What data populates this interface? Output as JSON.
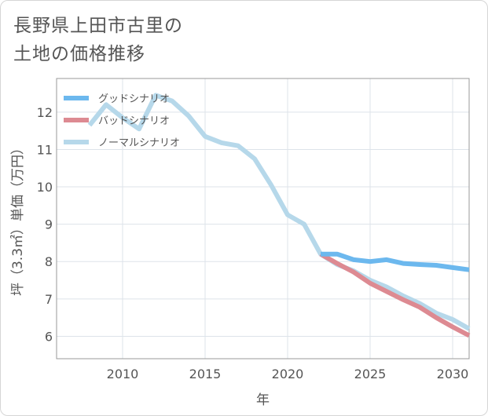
{
  "title": {
    "line1": "長野県上田市古里の",
    "line2": "土地の価格推移"
  },
  "chart_data": {
    "type": "line",
    "xlabel": "年",
    "ylabel": "坪（3.3㎡）単価（万円）",
    "xlim": [
      2006,
      2031
    ],
    "ylim": [
      5.4,
      12.9
    ],
    "xticks": [
      2010,
      2015,
      2020,
      2025,
      2030
    ],
    "yticks": [
      6,
      7,
      8,
      9,
      10,
      11,
      12
    ],
    "grid": true,
    "legend_position": "top-left",
    "series": [
      {
        "name": "グッドシナリオ",
        "color": "#6cb8ee",
        "points": [
          [
            2022,
            8.2
          ],
          [
            2023,
            8.2
          ],
          [
            2024,
            8.05
          ],
          [
            2025,
            8.0
          ],
          [
            2026,
            8.05
          ],
          [
            2027,
            7.95
          ],
          [
            2028,
            7.92
          ],
          [
            2029,
            7.9
          ],
          [
            2030,
            7.84
          ],
          [
            2031,
            7.78
          ]
        ]
      },
      {
        "name": "バッドシナリオ",
        "color": "#dd8a92",
        "points": [
          [
            2022,
            8.2
          ],
          [
            2023,
            7.95
          ],
          [
            2024,
            7.72
          ],
          [
            2025,
            7.42
          ],
          [
            2026,
            7.2
          ],
          [
            2027,
            6.98
          ],
          [
            2028,
            6.78
          ],
          [
            2029,
            6.5
          ],
          [
            2030,
            6.25
          ],
          [
            2031,
            6.02
          ]
        ]
      },
      {
        "name": "ノーマルシナリオ",
        "color": "#b6d8ea",
        "points": [
          [
            2008,
            11.65
          ],
          [
            2009,
            12.2
          ],
          [
            2010,
            11.85
          ],
          [
            2011,
            11.55
          ],
          [
            2012,
            12.45
          ],
          [
            2013,
            12.3
          ],
          [
            2014,
            11.9
          ],
          [
            2015,
            11.35
          ],
          [
            2016,
            11.18
          ],
          [
            2017,
            11.1
          ],
          [
            2018,
            10.75
          ],
          [
            2019,
            10.05
          ],
          [
            2020,
            9.25
          ],
          [
            2021,
            9.0
          ],
          [
            2022,
            8.2
          ],
          [
            2023,
            7.92
          ],
          [
            2024,
            7.75
          ],
          [
            2025,
            7.5
          ],
          [
            2026,
            7.32
          ],
          [
            2027,
            7.08
          ],
          [
            2028,
            6.88
          ],
          [
            2029,
            6.62
          ],
          [
            2030,
            6.45
          ],
          [
            2031,
            6.2
          ]
        ]
      }
    ]
  }
}
